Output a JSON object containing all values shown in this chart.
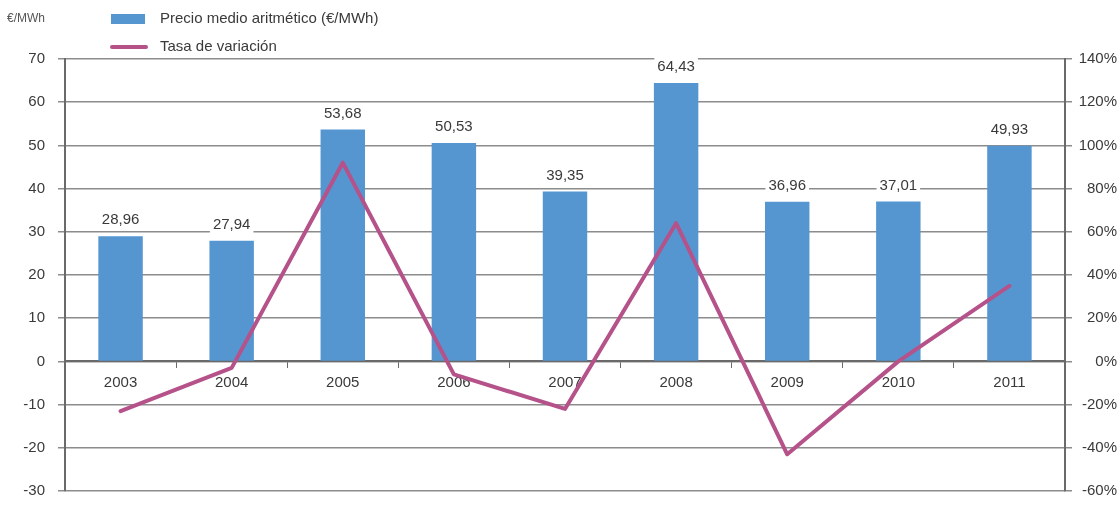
{
  "chart_data": {
    "type": "bar",
    "ylabel": "€/MWh",
    "categories": [
      "2003",
      "2004",
      "2005",
      "2006",
      "2007",
      "2008",
      "2009",
      "2010",
      "2011"
    ],
    "series": [
      {
        "name": "Precio medio aritmético (€/MWh)",
        "color": "#5596d1",
        "values": [
          28.96,
          27.94,
          53.68,
          50.53,
          39.35,
          64.43,
          36.96,
          37.01,
          49.93
        ],
        "value_labels": [
          "28,96",
          "27,94",
          "53,68",
          "50,53",
          "39,35",
          "64,43",
          "36,96",
          "37,01",
          "49,93"
        ]
      },
      {
        "name": "Tasa de variación",
        "type": "line",
        "axis": "y2",
        "color": "#b5528a",
        "values": [
          -23,
          -3,
          92,
          -6,
          -22,
          64,
          -43,
          0,
          35
        ]
      }
    ],
    "ylim": [
      -30,
      70
    ],
    "yticks": [
      -30,
      -20,
      -10,
      0,
      10,
      20,
      30,
      40,
      50,
      60,
      70
    ],
    "y2lim": [
      -60,
      140
    ],
    "y2ticks": [
      {
        "value": -60,
        "label": "-60%"
      },
      {
        "value": -40,
        "label": "-40%"
      },
      {
        "value": -20,
        "label": "-20%"
      },
      {
        "value": 0,
        "label": "0%"
      },
      {
        "value": 20,
        "label": "20%"
      },
      {
        "value": 40,
        "label": "40%"
      },
      {
        "value": 60,
        "label": "60%"
      },
      {
        "value": 80,
        "label": "80%"
      },
      {
        "value": 100,
        "label": "100%"
      },
      {
        "value": 120,
        "label": "120%"
      },
      {
        "value": 140,
        "label": "140%"
      }
    ],
    "grid": "y",
    "legend": "top left",
    "marker": "none",
    "line_style": "solid"
  }
}
